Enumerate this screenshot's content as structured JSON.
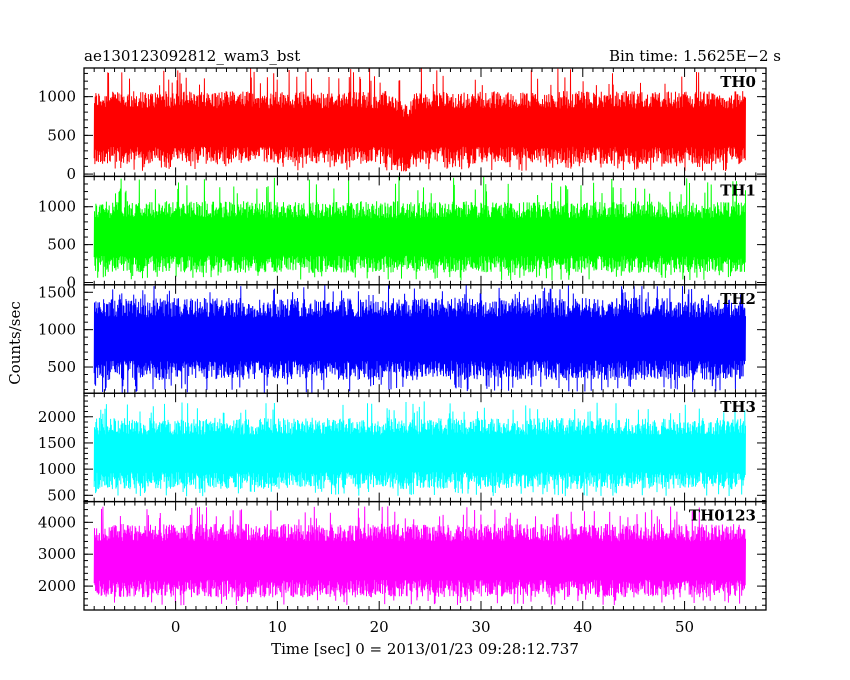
{
  "chart_data": {
    "type": "line",
    "title_left": "ae130123092812_wam3_bst",
    "title_right": "Bin time: 1.5625E−2 s",
    "xlabel": "Time [sec] 0 = 2013/01/23 09:28:12.737",
    "ylabel": "Counts/sec",
    "xlim": [
      -9,
      58
    ],
    "x_data_range": [
      -8,
      56
    ],
    "x_ticks": [
      0,
      10,
      20,
      30,
      40,
      50
    ],
    "x_tick_labels": [
      "0",
      "10",
      "20",
      "30",
      "40",
      "50"
    ],
    "bin_time_s": 0.015625,
    "panels": [
      {
        "name": "TH0",
        "color": "#ff0000",
        "ylim": [
          -30,
          1370
        ],
        "yticks": [
          0,
          500,
          1000
        ],
        "ytick_labels": [
          "0",
          "500",
          "1000"
        ],
        "typical_range": [
          150,
          1050
        ],
        "min": 40,
        "max": 1370,
        "dip_at_sec": 22.5
      },
      {
        "name": "TH1",
        "color": "#00ff00",
        "ylim": [
          -30,
          1400
        ],
        "yticks": [
          0,
          500,
          1000
        ],
        "ytick_labels": [
          "0",
          "500",
          "1000"
        ],
        "typical_range": [
          150,
          1050
        ],
        "min": 30,
        "max": 1400
      },
      {
        "name": "TH2",
        "color": "#0000ff",
        "ylim": [
          150,
          1600
        ],
        "yticks": [
          500,
          1000,
          1500
        ],
        "ytick_labels": [
          "500",
          "1000",
          "1500"
        ],
        "typical_range": [
          350,
          1400
        ],
        "min": 150,
        "max": 1600
      },
      {
        "name": "TH3",
        "color": "#00ffff",
        "ylim": [
          380,
          2450
        ],
        "yticks": [
          500,
          1000,
          1500,
          2000
        ],
        "ytick_labels": [
          "500",
          "1000",
          "1500",
          "2000"
        ],
        "typical_range": [
          650,
          1950
        ],
        "min": 480,
        "max": 2300
      },
      {
        "name": "TH0123",
        "color": "#ff00ff",
        "ylim": [
          1250,
          4650
        ],
        "yticks": [
          2000,
          3000,
          4000
        ],
        "ytick_labels": [
          "2000",
          "3000",
          "4000"
        ],
        "typical_range": [
          1700,
          3900
        ],
        "min": 1400,
        "max": 4500
      }
    ]
  }
}
